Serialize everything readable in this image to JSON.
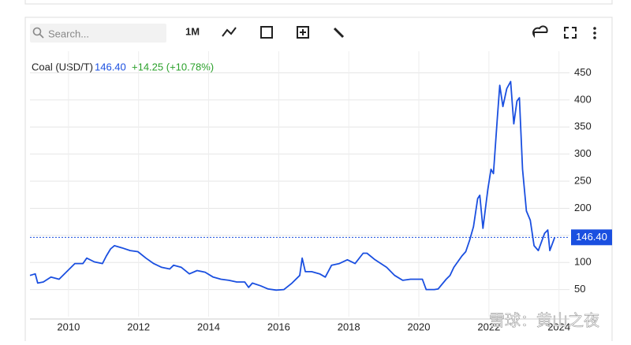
{
  "toolbar": {
    "search_placeholder": "Search...",
    "range": "1M"
  },
  "watermark": "雪球：黄山之夜",
  "chart_data": {
    "type": "line",
    "title": "Coal (USD/T)",
    "change": "+14.25 (+10.78%)",
    "current": {
      "value": 146.4,
      "label": "146.40"
    },
    "x": [
      2008.9,
      2009.05,
      2009.12,
      2009.28,
      2009.5,
      2009.73,
      2009.95,
      2010.18,
      2010.41,
      2010.52,
      2010.74,
      2010.97,
      2011.08,
      2011.2,
      2011.31,
      2011.53,
      2011.76,
      2011.98,
      2012.21,
      2012.43,
      2012.66,
      2012.89,
      2013.0,
      2013.22,
      2013.45,
      2013.67,
      2013.9,
      2014.13,
      2014.35,
      2014.58,
      2014.8,
      2015.03,
      2015.14,
      2015.25,
      2015.48,
      2015.7,
      2015.93,
      2016.15,
      2016.38,
      2016.6,
      2016.67,
      2016.76,
      2016.94,
      2017.17,
      2017.33,
      2017.51,
      2017.73,
      2017.96,
      2018.18,
      2018.41,
      2018.52,
      2018.75,
      2019.08,
      2019.31,
      2019.54,
      2019.76,
      2020.1,
      2020.21,
      2020.44,
      2020.55,
      2020.78,
      2020.89,
      2021.0,
      2021.23,
      2021.34,
      2021.45,
      2021.56,
      2021.68,
      2021.74,
      2021.83,
      2021.97,
      2022.06,
      2022.13,
      2022.24,
      2022.31,
      2022.4,
      2022.51,
      2022.62,
      2022.71,
      2022.8,
      2022.87,
      2022.96,
      2023.07,
      2023.18,
      2023.29,
      2023.41,
      2023.59,
      2023.68,
      2023.74,
      2023.88
    ],
    "series": [
      {
        "name": "Coal",
        "color": "#1a4fe0",
        "values": [
          76,
          79,
          62,
          64,
          73,
          69,
          83,
          98,
          98,
          108,
          101,
          98,
          112,
          125,
          131,
          127,
          122,
          120,
          108,
          98,
          91,
          88,
          95,
          91,
          79,
          85,
          82,
          73,
          69,
          67,
          64,
          64,
          54,
          62,
          57,
          51,
          49,
          50,
          62,
          76,
          108,
          83,
          83,
          79,
          73,
          95,
          98,
          105,
          98,
          117,
          117,
          105,
          91,
          76,
          67,
          69,
          69,
          50,
          50,
          51,
          69,
          76,
          91,
          112,
          120,
          141,
          166,
          218,
          224,
          163,
          235,
          272,
          264,
          366,
          427,
          388,
          421,
          434,
          356,
          398,
          404,
          272,
          195,
          178,
          131,
          122,
          154,
          160,
          122,
          146.4
        ]
      }
    ],
    "xlim": [
      2008.9,
      2024.3
    ],
    "ylim": [
      0,
      490
    ],
    "xticks": [
      2010,
      2012,
      2014,
      2016,
      2018,
      2020,
      2022,
      2024
    ],
    "yticks": [
      50,
      100,
      150,
      200,
      250,
      300,
      350,
      400,
      450
    ],
    "grid": true
  }
}
